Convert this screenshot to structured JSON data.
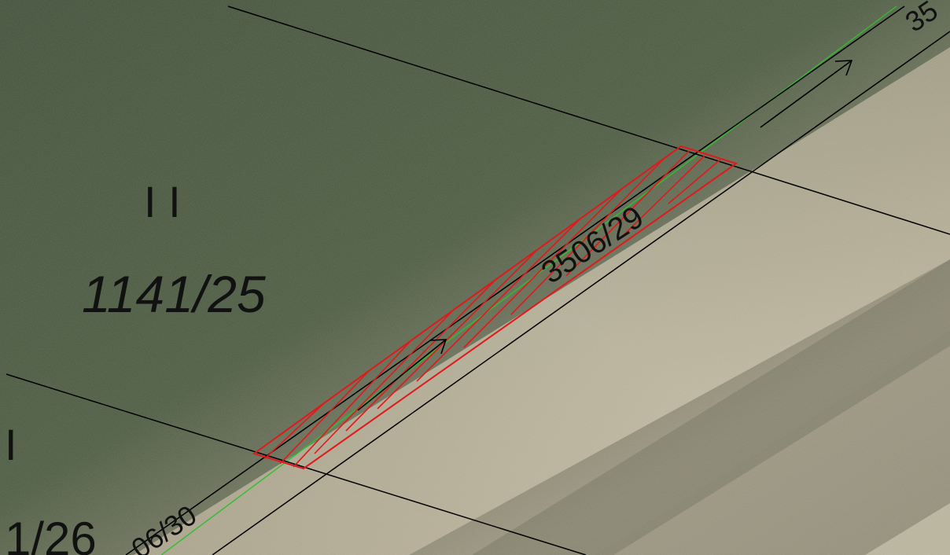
{
  "map": {
    "labels": {
      "parcel_main": "1141/25",
      "parcel_strip": "3506/29",
      "parcel_bottom_left": "1/26",
      "parcel_road_bottom": "06/30",
      "parcel_road_top": "35",
      "land_class_mark": "I I",
      "land_class_mark_left": "I"
    },
    "colors": {
      "boundary_line": "#000000",
      "highlight_parcel": "#e01a1a",
      "reference_line": "#2fbf2f",
      "field_dark": "#4a5a40",
      "field_light": "#a8a08a"
    },
    "icons": {
      "direction_arrow_1": "arrow-icon",
      "direction_arrow_2": "arrow-icon"
    }
  }
}
